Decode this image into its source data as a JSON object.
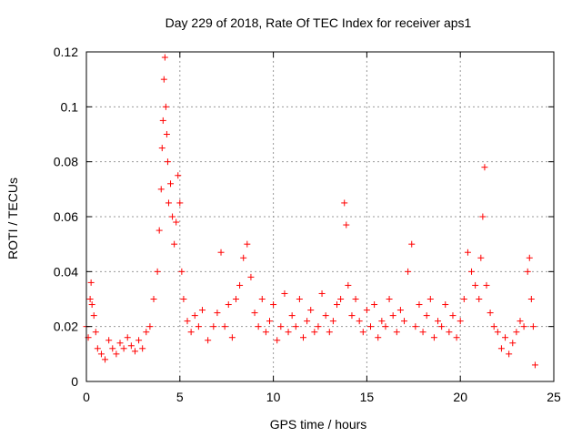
{
  "chart_data": {
    "type": "scatter",
    "title": "Day 229 of 2018, Rate Of TEC Index for receiver aps1",
    "xlabel": "GPS time / hours",
    "ylabel": "ROTI / TECUs",
    "xlim": [
      0,
      25
    ],
    "ylim": [
      0,
      0.12
    ],
    "x_ticks": [
      "0",
      "5",
      "10",
      "15",
      "20",
      "25"
    ],
    "y_ticks": [
      "0",
      "0.02",
      "0.04",
      "0.06",
      "0.08",
      "0.1",
      "0.12"
    ],
    "grid": true,
    "marker": "plus",
    "color": "#ff0000",
    "series": [
      {
        "name": "",
        "points": [
          [
            0.0,
            0.02
          ],
          [
            0.1,
            0.016
          ],
          [
            0.2,
            0.03
          ],
          [
            0.25,
            0.036
          ],
          [
            0.3,
            0.028
          ],
          [
            0.4,
            0.024
          ],
          [
            0.5,
            0.018
          ],
          [
            0.6,
            0.012
          ],
          [
            0.8,
            0.01
          ],
          [
            1.0,
            0.008
          ],
          [
            1.2,
            0.015
          ],
          [
            1.4,
            0.012
          ],
          [
            1.6,
            0.01
          ],
          [
            1.8,
            0.014
          ],
          [
            2.0,
            0.012
          ],
          [
            2.2,
            0.016
          ],
          [
            2.4,
            0.013
          ],
          [
            2.6,
            0.011
          ],
          [
            2.8,
            0.015
          ],
          [
            3.0,
            0.012
          ],
          [
            3.2,
            0.018
          ],
          [
            3.4,
            0.02
          ],
          [
            3.6,
            0.03
          ],
          [
            3.8,
            0.04
          ],
          [
            3.9,
            0.055
          ],
          [
            4.0,
            0.07
          ],
          [
            4.05,
            0.085
          ],
          [
            4.1,
            0.095
          ],
          [
            4.15,
            0.11
          ],
          [
            4.2,
            0.118
          ],
          [
            4.25,
            0.1
          ],
          [
            4.3,
            0.09
          ],
          [
            4.35,
            0.08
          ],
          [
            4.4,
            0.065
          ],
          [
            4.5,
            0.072
          ],
          [
            4.6,
            0.06
          ],
          [
            4.7,
            0.05
          ],
          [
            4.8,
            0.058
          ],
          [
            4.9,
            0.075
          ],
          [
            5.0,
            0.065
          ],
          [
            5.1,
            0.04
          ],
          [
            5.2,
            0.03
          ],
          [
            5.4,
            0.022
          ],
          [
            5.6,
            0.018
          ],
          [
            5.8,
            0.024
          ],
          [
            6.0,
            0.02
          ],
          [
            6.2,
            0.026
          ],
          [
            6.5,
            0.015
          ],
          [
            6.8,
            0.02
          ],
          [
            7.0,
            0.025
          ],
          [
            7.2,
            0.047
          ],
          [
            7.4,
            0.02
          ],
          [
            7.6,
            0.028
          ],
          [
            7.8,
            0.016
          ],
          [
            8.0,
            0.03
          ],
          [
            8.2,
            0.035
          ],
          [
            8.4,
            0.045
          ],
          [
            8.6,
            0.05
          ],
          [
            8.8,
            0.038
          ],
          [
            9.0,
            0.025
          ],
          [
            9.2,
            0.02
          ],
          [
            9.4,
            0.03
          ],
          [
            9.6,
            0.018
          ],
          [
            9.8,
            0.022
          ],
          [
            10.0,
            0.028
          ],
          [
            10.2,
            0.015
          ],
          [
            10.4,
            0.02
          ],
          [
            10.6,
            0.032
          ],
          [
            10.8,
            0.018
          ],
          [
            11.0,
            0.024
          ],
          [
            11.2,
            0.02
          ],
          [
            11.4,
            0.03
          ],
          [
            11.6,
            0.016
          ],
          [
            11.8,
            0.022
          ],
          [
            12.0,
            0.026
          ],
          [
            12.2,
            0.018
          ],
          [
            12.4,
            0.02
          ],
          [
            12.6,
            0.032
          ],
          [
            12.8,
            0.024
          ],
          [
            13.0,
            0.018
          ],
          [
            13.2,
            0.022
          ],
          [
            13.4,
            0.028
          ],
          [
            13.6,
            0.03
          ],
          [
            13.8,
            0.065
          ],
          [
            13.9,
            0.057
          ],
          [
            14.0,
            0.035
          ],
          [
            14.2,
            0.024
          ],
          [
            14.4,
            0.03
          ],
          [
            14.6,
            0.022
          ],
          [
            14.8,
            0.018
          ],
          [
            15.0,
            0.026
          ],
          [
            15.2,
            0.02
          ],
          [
            15.4,
            0.028
          ],
          [
            15.6,
            0.016
          ],
          [
            15.8,
            0.022
          ],
          [
            16.0,
            0.02
          ],
          [
            16.2,
            0.03
          ],
          [
            16.4,
            0.024
          ],
          [
            16.6,
            0.018
          ],
          [
            16.8,
            0.026
          ],
          [
            17.0,
            0.022
          ],
          [
            17.2,
            0.04
          ],
          [
            17.4,
            0.05
          ],
          [
            17.6,
            0.02
          ],
          [
            17.8,
            0.028
          ],
          [
            18.0,
            0.018
          ],
          [
            18.2,
            0.024
          ],
          [
            18.4,
            0.03
          ],
          [
            18.6,
            0.016
          ],
          [
            18.8,
            0.022
          ],
          [
            19.0,
            0.02
          ],
          [
            19.2,
            0.028
          ],
          [
            19.4,
            0.018
          ],
          [
            19.6,
            0.024
          ],
          [
            19.8,
            0.016
          ],
          [
            20.0,
            0.022
          ],
          [
            20.2,
            0.03
          ],
          [
            20.4,
            0.047
          ],
          [
            20.6,
            0.04
          ],
          [
            20.8,
            0.035
          ],
          [
            21.0,
            0.03
          ],
          [
            21.1,
            0.045
          ],
          [
            21.2,
            0.06
          ],
          [
            21.3,
            0.078
          ],
          [
            21.4,
            0.035
          ],
          [
            21.6,
            0.025
          ],
          [
            21.8,
            0.02
          ],
          [
            22.0,
            0.018
          ],
          [
            22.2,
            0.012
          ],
          [
            22.4,
            0.016
          ],
          [
            22.6,
            0.01
          ],
          [
            22.8,
            0.014
          ],
          [
            23.0,
            0.018
          ],
          [
            23.2,
            0.022
          ],
          [
            23.4,
            0.02
          ],
          [
            23.6,
            0.04
          ],
          [
            23.7,
            0.045
          ],
          [
            23.8,
            0.03
          ],
          [
            23.9,
            0.02
          ],
          [
            24.0,
            0.006
          ]
        ]
      }
    ]
  }
}
